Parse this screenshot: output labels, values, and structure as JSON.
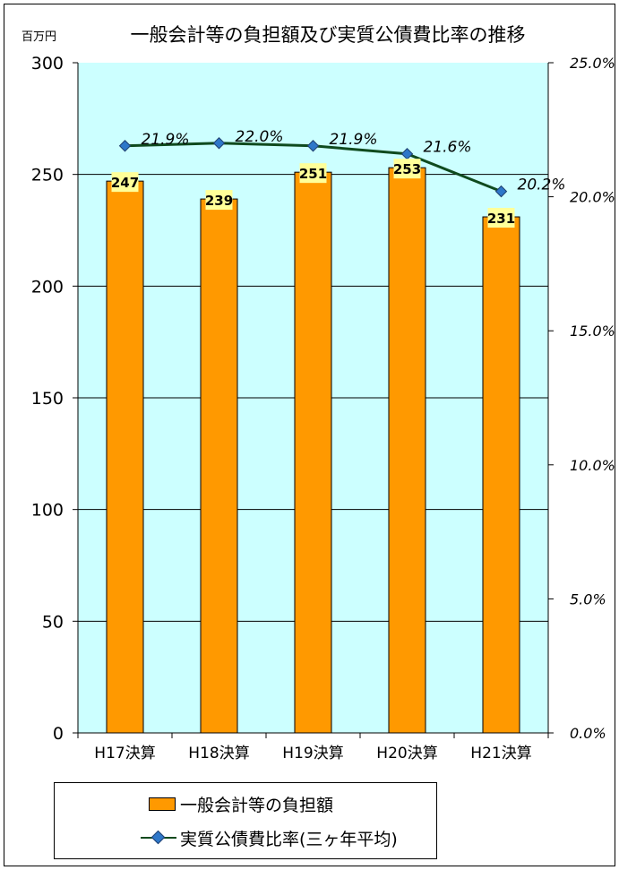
{
  "chart_data": {
    "type": "bar",
    "title": "一般会計等の負担額及び実質公債費比率の推移",
    "y_unit_label": "百万円",
    "categories": [
      "H17決算",
      "H18決算",
      "H19決算",
      "H20決算",
      "H21決算"
    ],
    "series": [
      {
        "name": "一般会計等の負担額",
        "type": "bar",
        "axis": "left",
        "values": [
          247,
          239,
          251,
          253,
          231
        ],
        "labels": [
          "247",
          "239",
          "251",
          "253",
          "231"
        ],
        "color": "#ff9900"
      },
      {
        "name": "実質公債費比率(三ヶ年平均)",
        "type": "line",
        "axis": "right",
        "values": [
          21.9,
          22.0,
          21.9,
          21.6,
          20.2
        ],
        "labels": [
          "21.9%",
          "22.0%",
          "21.9%",
          "21.6%",
          "20.2%"
        ],
        "color": "#0f4a1e",
        "marker_color": "#2e77c9"
      }
    ],
    "left_axis": {
      "range": [
        0,
        300
      ],
      "ticks": [
        "0",
        "50",
        "100",
        "150",
        "200",
        "250",
        "300"
      ]
    },
    "right_axis": {
      "range": [
        0,
        25
      ],
      "ticks": [
        "0.0%",
        "5.0%",
        "10.0%",
        "15.0%",
        "20.0%",
        "25.0%"
      ]
    },
    "grid": true,
    "plot_background": "#ccffff",
    "data_label_background": "#ffff99",
    "legend_position": "bottom"
  }
}
